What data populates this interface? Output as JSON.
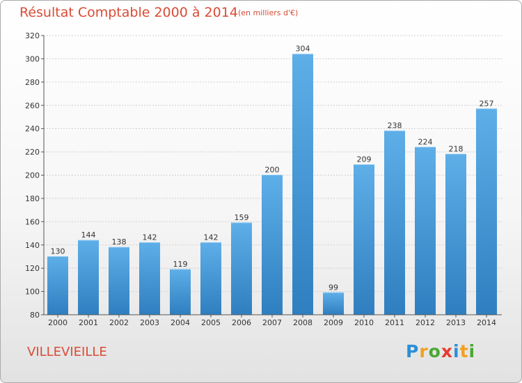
{
  "header": {
    "title": "Résultat Comptable 2000 à 2014",
    "subtitle": "(en milliers d'€)"
  },
  "footer": {
    "commune": "VILLEVIEILLE",
    "logo_letters": [
      "P",
      "r",
      "o",
      "x",
      "i",
      "t",
      "i"
    ],
    "logo_colors": [
      "#2c8fd6",
      "#f2a11f",
      "#4aa832",
      "#e63b2e",
      "#2c8fd6",
      "#f2a11f",
      "#4aa832"
    ]
  },
  "colors": {
    "bar_light": "#5eaee8",
    "bar_dark": "#2f7fc0",
    "grid": "#cfcfcf",
    "axis": "#555555",
    "title": "#d94b35"
  },
  "chart_data": {
    "type": "bar",
    "title": "Résultat Comptable 2000 à 2014",
    "subtitle": "(en milliers d'€)",
    "categories": [
      "2000",
      "2001",
      "2002",
      "2003",
      "2004",
      "2005",
      "2006",
      "2007",
      "2008",
      "2009",
      "2010",
      "2011",
      "2012",
      "2013",
      "2014"
    ],
    "values": [
      130,
      144,
      138,
      142,
      119,
      142,
      159,
      200,
      304,
      99,
      209,
      238,
      224,
      218,
      257
    ],
    "ylim": [
      80,
      320
    ],
    "yticks": [
      80,
      100,
      120,
      140,
      160,
      180,
      200,
      220,
      240,
      260,
      280,
      300,
      320
    ],
    "grid": true,
    "data_labels": true
  }
}
